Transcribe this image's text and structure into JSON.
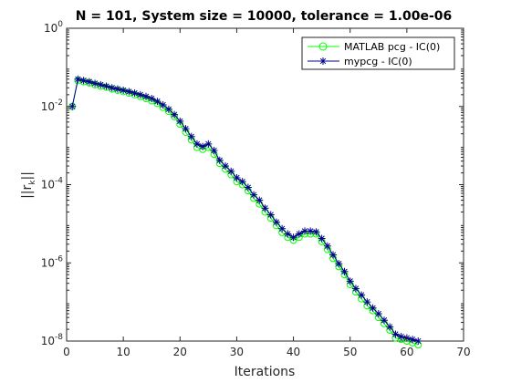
{
  "chart_data": {
    "type": "line",
    "title": "N = 101, System size = 10000, tolerance = 1.00e-06",
    "xlabel": "Iterations",
    "ylabel_main": "||r",
    "ylabel_sub": "k",
    "ylabel_end": "||",
    "xlim": [
      0,
      70
    ],
    "ylim": [
      1e-08,
      1
    ],
    "yscale": "log",
    "grid": false,
    "legend_position": "top-right",
    "x_ticks": [
      "0",
      "10",
      "20",
      "30",
      "40",
      "50",
      "60",
      "70"
    ],
    "y_ticks": [
      {
        "value": 1,
        "base": "10",
        "exp": "0"
      },
      {
        "value": 0.01,
        "base": "10",
        "exp": "-2"
      },
      {
        "value": 0.0001,
        "base": "10",
        "exp": "-4"
      },
      {
        "value": 1e-06,
        "base": "10",
        "exp": "-6"
      },
      {
        "value": 1e-08,
        "base": "10",
        "exp": "-8"
      }
    ],
    "x": [
      1,
      2,
      3,
      4,
      5,
      6,
      7,
      8,
      9,
      10,
      11,
      12,
      13,
      14,
      15,
      16,
      17,
      18,
      19,
      20,
      21,
      22,
      23,
      24,
      25,
      26,
      27,
      28,
      29,
      30,
      31,
      32,
      33,
      34,
      35,
      36,
      37,
      38,
      39,
      40,
      41,
      42,
      43,
      44,
      45,
      46,
      47,
      48,
      49,
      50,
      51,
      52,
      53,
      54,
      55,
      56,
      57,
      58,
      59,
      60,
      61,
      62
    ],
    "series": [
      {
        "name": "MATLAB pcg - IC(0)",
        "color": "#00ff00",
        "marker": "circle",
        "values": [
          0.01,
          0.046,
          0.043,
          0.04,
          0.036,
          0.033,
          0.031,
          0.028,
          0.026,
          0.024,
          0.022,
          0.02,
          0.018,
          0.016,
          0.014,
          0.012,
          0.0095,
          0.0075,
          0.0055,
          0.0035,
          0.0022,
          0.0014,
          0.0009,
          0.0008,
          0.0009,
          0.0006,
          0.00035,
          0.00025,
          0.00018,
          0.00012,
          0.0001,
          7e-05,
          4.5e-05,
          3.2e-05,
          2e-05,
          1.4e-05,
          9e-06,
          6e-06,
          4.5e-06,
          3.8e-06,
          4.5e-06,
          5.5e-06,
          5.5e-06,
          5.5e-06,
          3.5e-06,
          2.2e-06,
          1.3e-06,
          8e-07,
          5e-07,
          2.8e-07,
          1.8e-07,
          1.2e-07,
          8e-08,
          6e-08,
          4e-08,
          2.8e-08,
          1.9e-08,
          1.2e-08,
          1.1e-08,
          1e-08,
          9e-09,
          8e-09
        ]
      },
      {
        "name": "mypcg - IC(0)",
        "color": "#00008b",
        "marker": "asterisk",
        "values": [
          0.01,
          0.05,
          0.046,
          0.043,
          0.039,
          0.036,
          0.033,
          0.03,
          0.028,
          0.026,
          0.024,
          0.022,
          0.02,
          0.018,
          0.016,
          0.0135,
          0.011,
          0.0085,
          0.0062,
          0.0042,
          0.0027,
          0.0017,
          0.0011,
          0.00095,
          0.0011,
          0.00075,
          0.00042,
          0.0003,
          0.00022,
          0.00015,
          0.00012,
          8.5e-05,
          5.5e-05,
          4e-05,
          2.5e-05,
          1.7e-05,
          1.1e-05,
          7.5e-06,
          5.5e-06,
          4.5e-06,
          5.5e-06,
          6.5e-06,
          6.5e-06,
          6.2e-06,
          4.2e-06,
          2.7e-06,
          1.6e-06,
          9.5e-07,
          6e-07,
          3.4e-07,
          2.2e-07,
          1.5e-07,
          1e-07,
          7e-08,
          5e-08,
          3.4e-08,
          2.3e-08,
          1.5e-08,
          1.3e-08,
          1.2e-08,
          1.1e-08,
          1e-08
        ]
      }
    ]
  }
}
